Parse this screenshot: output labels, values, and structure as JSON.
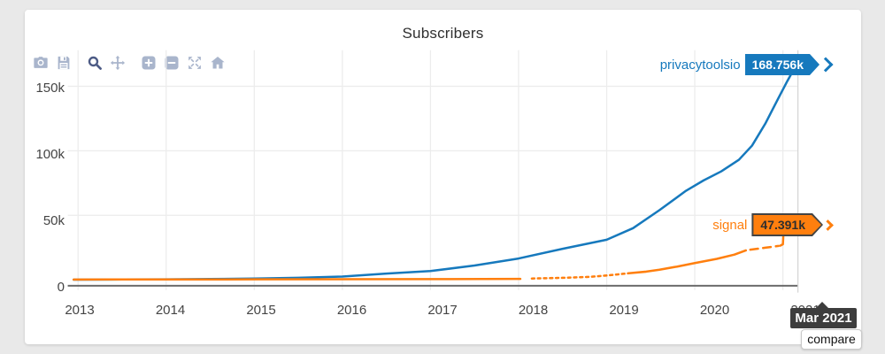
{
  "page": {
    "background": "#e9e9e9",
    "card_background": "#ffffff"
  },
  "colors": {
    "accent_blue": "#1679bd",
    "accent_orange": "#ff7f0e",
    "modebar_icon": "#a9b5cc",
    "modebar_icon_active": "#4d5b85",
    "grid": "#ececec",
    "axis_line": "#6b6b6b",
    "tick_text": "#444444",
    "title_text": "#2f2f2f",
    "tooltip_bg": "#3d3d3d",
    "crosshair": "#d3d3d3",
    "badge_border": "#444444",
    "orange_badge_text": "#2e2e2e"
  },
  "modebar": {
    "groups": [
      [
        "camera",
        "save"
      ],
      [
        "zoom",
        "pan"
      ],
      [
        "zoom-in",
        "zoom-out",
        "autoscale",
        "home"
      ]
    ],
    "active": "zoom"
  },
  "chart_data": {
    "type": "line",
    "title": "Subscribers",
    "xlabel": "",
    "ylabel": "",
    "grid": "on",
    "legend_position": "none",
    "x_axis": {
      "range": [
        2012.88,
        2021.18
      ],
      "ticks": [
        "2013",
        "2014",
        "2015",
        "2016",
        "2017",
        "2018",
        "2019",
        "2020",
        "2021"
      ],
      "tick_values": [
        2013,
        2014,
        2015,
        2016,
        2017,
        2018,
        2019,
        2020,
        2021
      ]
    },
    "y_axis": {
      "range": [
        -4700,
        178000
      ],
      "ticks": [
        {
          "value": 0,
          "label": "0"
        },
        {
          "value": 50000,
          "label": "50k"
        },
        {
          "value": 100000,
          "label": "100k"
        },
        {
          "value": 150000,
          "label": "150k"
        }
      ]
    },
    "hover": {
      "x_label": "Mar 2021"
    },
    "series": [
      {
        "name": "privacytoolsio",
        "color": "#1679bd",
        "final_value": 168756,
        "final_label": "168.756k",
        "segments": [
          {
            "style": "solid",
            "points": [
              [
                2012.95,
                80
              ],
              [
                2013,
                100
              ],
              [
                2013.5,
                200
              ],
              [
                2014,
                350
              ],
              [
                2014.5,
                550
              ],
              [
                2015,
                900
              ],
              [
                2015.5,
                1500
              ],
              [
                2016,
                2500
              ],
              [
                2016.5,
                4700
              ],
              [
                2017,
                6700
              ],
              [
                2017.5,
                11000
              ],
              [
                2018,
                16500
              ],
              [
                2018.5,
                24000
              ],
              [
                2019,
                31000
              ],
              [
                2019.3,
                40000
              ],
              [
                2019.6,
                54000
              ],
              [
                2019.9,
                69000
              ],
              [
                2020.1,
                77000
              ],
              [
                2020.3,
                84000
              ],
              [
                2020.5,
                93000
              ],
              [
                2020.65,
                104000
              ],
              [
                2020.8,
                121000
              ],
              [
                2020.95,
                141000
              ],
              [
                2021.05,
                154000
              ],
              [
                2021.17,
                168756
              ]
            ]
          }
        ]
      },
      {
        "name": "signal",
        "color": "#ff7f0e",
        "final_value": 47391,
        "final_label": "47.391k",
        "segments": [
          {
            "style": "solid",
            "points": [
              [
                2012.95,
                150
              ],
              [
                2013.5,
                180
              ],
              [
                2014,
                220
              ],
              [
                2015,
                300
              ],
              [
                2016,
                400
              ],
              [
                2017,
                500
              ],
              [
                2017.6,
                550
              ],
              [
                2018.02,
                650
              ]
            ]
          },
          {
            "style": "dotted",
            "points": [
              [
                2018.15,
                900
              ],
              [
                2018.5,
                1500
              ],
              [
                2018.8,
                2200
              ],
              [
                2019,
                3300
              ],
              [
                2019.25,
                5000
              ]
            ]
          },
          {
            "style": "solid",
            "points": [
              [
                2019.25,
                5000
              ],
              [
                2019.45,
                6300
              ],
              [
                2019.6,
                7800
              ],
              [
                2019.8,
                10200
              ],
              [
                2020,
                12900
              ],
              [
                2020.25,
                16200
              ],
              [
                2020.45,
                19500
              ],
              [
                2020.58,
                22700
              ]
            ]
          },
          {
            "style": "dashed",
            "points": [
              [
                2020.63,
                23300
              ],
              [
                2020.8,
                24800
              ],
              [
                2020.95,
                26200
              ]
            ]
          },
          {
            "style": "solid",
            "points": [
              [
                2020.97,
                26400
              ],
              [
                2021.0,
                27500
              ],
              [
                2021.01,
                41000
              ],
              [
                2021.05,
                43000
              ],
              [
                2021.17,
                47391
              ]
            ]
          }
        ]
      }
    ]
  },
  "tooltip": {
    "label": "Mar 2021"
  },
  "compare_button": {
    "label": "compare"
  }
}
